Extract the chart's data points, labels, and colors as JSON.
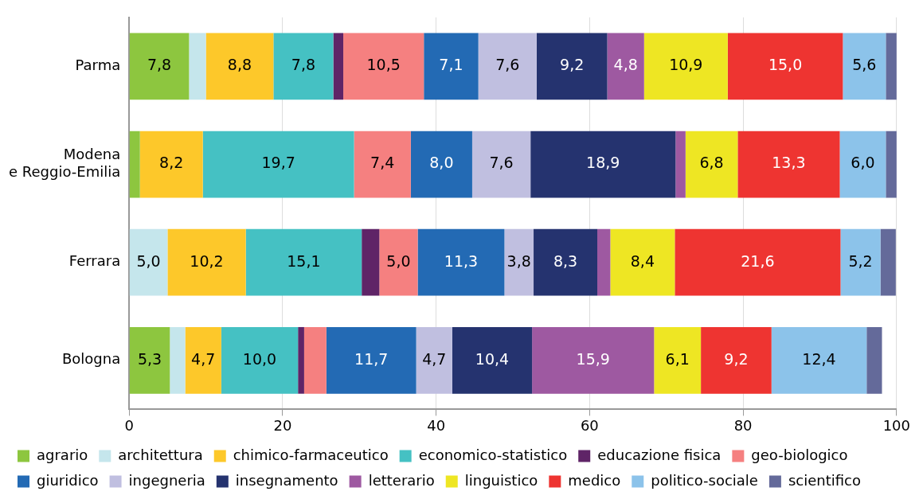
{
  "chart_data": {
    "type": "bar",
    "orientation": "horizontal",
    "stacked": true,
    "categories": [
      "Parma",
      "Modena e Reggio-Emilia",
      "Ferrara",
      "Bologna"
    ],
    "xlim": [
      0,
      100
    ],
    "xticks": [
      0,
      20,
      40,
      60,
      80,
      100
    ],
    "grid": "x",
    "legend": "bottom",
    "series": [
      {
        "name": "agrario",
        "color": "#8dc63f",
        "values": [
          7.8,
          1.4,
          0,
          5.3
        ],
        "value_labels": [
          "7,8",
          null,
          null,
          "5,3"
        ]
      },
      {
        "name": "architettura",
        "color": "#c5e6ec",
        "values": [
          2.2,
          0,
          5.0,
          2.0
        ],
        "value_labels": [
          null,
          null,
          "5,0",
          null
        ]
      },
      {
        "name": "chimico-farmaceutico",
        "color": "#fdc82a",
        "values": [
          8.8,
          8.2,
          10.2,
          4.7
        ],
        "value_labels": [
          "8,8",
          "8,2",
          "10,2",
          "4,7"
        ]
      },
      {
        "name": "economico-statistico",
        "color": "#45c1c3",
        "values": [
          7.8,
          19.7,
          15.1,
          10.0
        ],
        "value_labels": [
          "7,8",
          "19,7",
          "15,1",
          "10,0"
        ]
      },
      {
        "name": "educazione fisica",
        "color": "#5f2467",
        "values": [
          1.3,
          0,
          2.3,
          0.8
        ],
        "value_labels": [
          null,
          null,
          null,
          null
        ]
      },
      {
        "name": "geo-biologico",
        "color": "#f58080",
        "values": [
          10.5,
          7.4,
          5.0,
          2.9
        ],
        "value_labels": [
          "10,5",
          "7,4",
          "5,0",
          null
        ]
      },
      {
        "name": "giuridico",
        "color": "#236ab4",
        "values": [
          7.1,
          8.0,
          11.3,
          11.7
        ],
        "value_labels": [
          "7,1",
          "8,0",
          "11,3",
          "11,7"
        ]
      },
      {
        "name": "ingegneria",
        "color": "#c0bfe0",
        "values": [
          7.6,
          7.6,
          3.8,
          4.7
        ],
        "value_labels": [
          "7,6",
          "7,6",
          "3,8",
          "4,7"
        ]
      },
      {
        "name": "insegnamento",
        "color": "#25336f",
        "values": [
          9.2,
          18.9,
          8.3,
          10.4
        ],
        "value_labels": [
          "9,2",
          "18,9",
          "8,3",
          "10,4"
        ]
      },
      {
        "name": "letterario",
        "color": "#9e59a1",
        "values": [
          4.8,
          1.3,
          1.7,
          15.9
        ],
        "value_labels": [
          "4,8",
          null,
          null,
          "15,9"
        ]
      },
      {
        "name": "linguistico",
        "color": "#eee623",
        "values": [
          10.9,
          6.8,
          8.4,
          6.1
        ],
        "value_labels": [
          "10,9",
          "6,8",
          "8,4",
          "6,1"
        ]
      },
      {
        "name": "medico",
        "color": "#ee3431",
        "values": [
          15.0,
          13.3,
          21.6,
          9.2
        ],
        "value_labels": [
          "15,0",
          "13,3",
          "21,6",
          "9,2"
        ]
      },
      {
        "name": "politico-sociale",
        "color": "#8cc3ea",
        "values": [
          5.6,
          6.0,
          5.2,
          12.4
        ],
        "value_labels": [
          "5,6",
          "6,0",
          "5,2",
          "12,4"
        ]
      },
      {
        "name": "scientifico",
        "color": "#646a9a",
        "values": [
          1.7,
          1.5,
          2.0,
          2.0
        ],
        "value_labels": [
          null,
          null,
          null,
          null
        ]
      }
    ]
  }
}
